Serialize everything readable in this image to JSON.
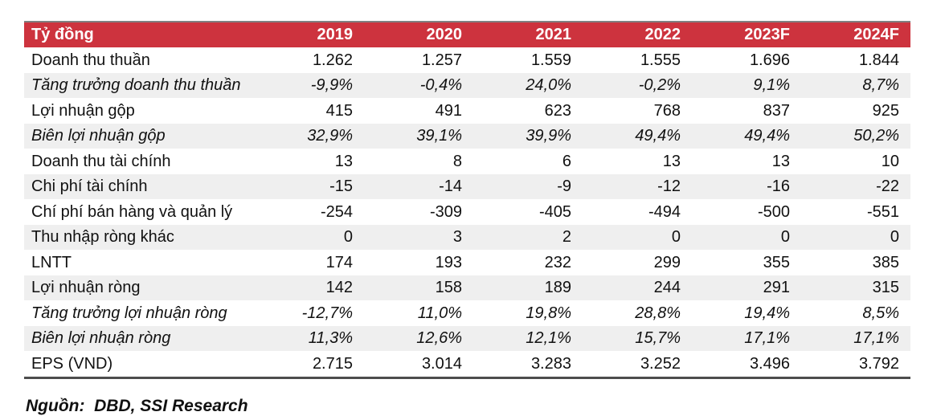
{
  "table": {
    "unit_header": "Tỷ đồng",
    "year_columns": [
      "2019",
      "2020",
      "2021",
      "2022",
      "2023F",
      "2024F"
    ],
    "rows": [
      {
        "label": "Doanh thu thuần",
        "italic": false,
        "values": [
          "1.262",
          "1.257",
          "1.559",
          "1.555",
          "1.696",
          "1.844"
        ]
      },
      {
        "label": "Tăng trưởng doanh thu thuần",
        "italic": true,
        "values": [
          "-9,9%",
          "-0,4%",
          "24,0%",
          "-0,2%",
          "9,1%",
          "8,7%"
        ]
      },
      {
        "label": "Lợi nhuận gộp",
        "italic": false,
        "values": [
          "415",
          "491",
          "623",
          "768",
          "837",
          "925"
        ]
      },
      {
        "label": "Biên lợi nhuận gộp",
        "italic": true,
        "values": [
          "32,9%",
          "39,1%",
          "39,9%",
          "49,4%",
          "49,4%",
          "50,2%"
        ]
      },
      {
        "label": "Doanh thu tài chính",
        "italic": false,
        "values": [
          "13",
          "8",
          "6",
          "13",
          "13",
          "10"
        ]
      },
      {
        "label": "Chi phí tài chính",
        "italic": false,
        "values": [
          "-15",
          "-14",
          "-9",
          "-12",
          "-16",
          "-22"
        ]
      },
      {
        "label": "Chí phí bán hàng và quản lý",
        "italic": false,
        "values": [
          "-254",
          "-309",
          "-405",
          "-494",
          "-500",
          "-551"
        ]
      },
      {
        "label": "Thu nhập ròng khác",
        "italic": false,
        "values": [
          "0",
          "3",
          "2",
          "0",
          "0",
          "0"
        ]
      },
      {
        "label": "LNTT",
        "italic": false,
        "values": [
          "174",
          "193",
          "232",
          "299",
          "355",
          "385"
        ]
      },
      {
        "label": "Lợi nhuận ròng",
        "italic": false,
        "values": [
          "142",
          "158",
          "189",
          "244",
          "291",
          "315"
        ]
      },
      {
        "label": "Tăng trưởng lợi nhuận ròng",
        "italic": true,
        "values": [
          "-12,7%",
          "11,0%",
          "19,8%",
          "28,8%",
          "19,4%",
          "8,5%"
        ]
      },
      {
        "label": "Biên lợi nhuận ròng",
        "italic": true,
        "values": [
          "11,3%",
          "12,6%",
          "12,1%",
          "15,7%",
          "17,1%",
          "17,1%"
        ]
      },
      {
        "label": "EPS (VND)",
        "italic": false,
        "values": [
          "2.715",
          "3.014",
          "3.283",
          "3.252",
          "3.496",
          "3.792"
        ]
      }
    ]
  },
  "footer": {
    "source_text": "Nguồn:  DBD, SSI Research"
  },
  "colors": {
    "header_bg": "#cd333e",
    "alt_row_bg": "#efefef",
    "top_border": "#808080",
    "bottom_border": "#4d4d4d"
  }
}
